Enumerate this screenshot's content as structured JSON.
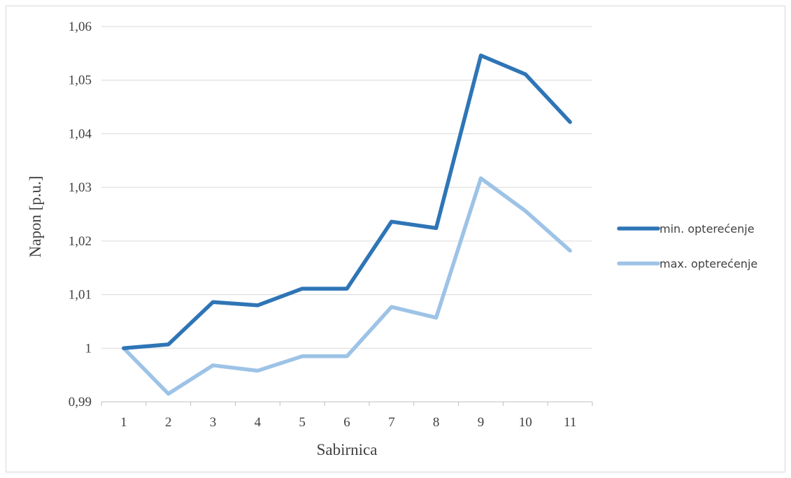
{
  "chart_data": {
    "type": "line",
    "title": "",
    "xlabel": "Sabirnica",
    "ylabel": "Napon [p.u.]",
    "categories": [
      "1",
      "2",
      "3",
      "4",
      "5",
      "6",
      "7",
      "8",
      "9",
      "10",
      "11"
    ],
    "ylim": [
      0.99,
      1.06
    ],
    "yticks": [
      0.99,
      1,
      1.01,
      1.02,
      1.03,
      1.04,
      1.05,
      1.06
    ],
    "ytick_labels": [
      "0,99",
      "1",
      "1,01",
      "1,02",
      "1,03",
      "1,04",
      "1,05",
      "1,06"
    ],
    "grid": true,
    "legend_position": "right",
    "series": [
      {
        "name": "min. opterećenje",
        "color": "#2e75b6",
        "values": [
          1.0,
          1.0007,
          1.0086,
          1.008,
          1.0111,
          1.0111,
          1.0236,
          1.0224,
          1.0546,
          1.0511,
          1.0422
        ]
      },
      {
        "name": "max. opterećenje",
        "color": "#9dc3e6",
        "values": [
          1.0,
          0.9915,
          0.9968,
          0.9958,
          0.9985,
          0.9985,
          1.0077,
          1.0057,
          1.0317,
          1.0256,
          1.0182
        ]
      }
    ]
  }
}
